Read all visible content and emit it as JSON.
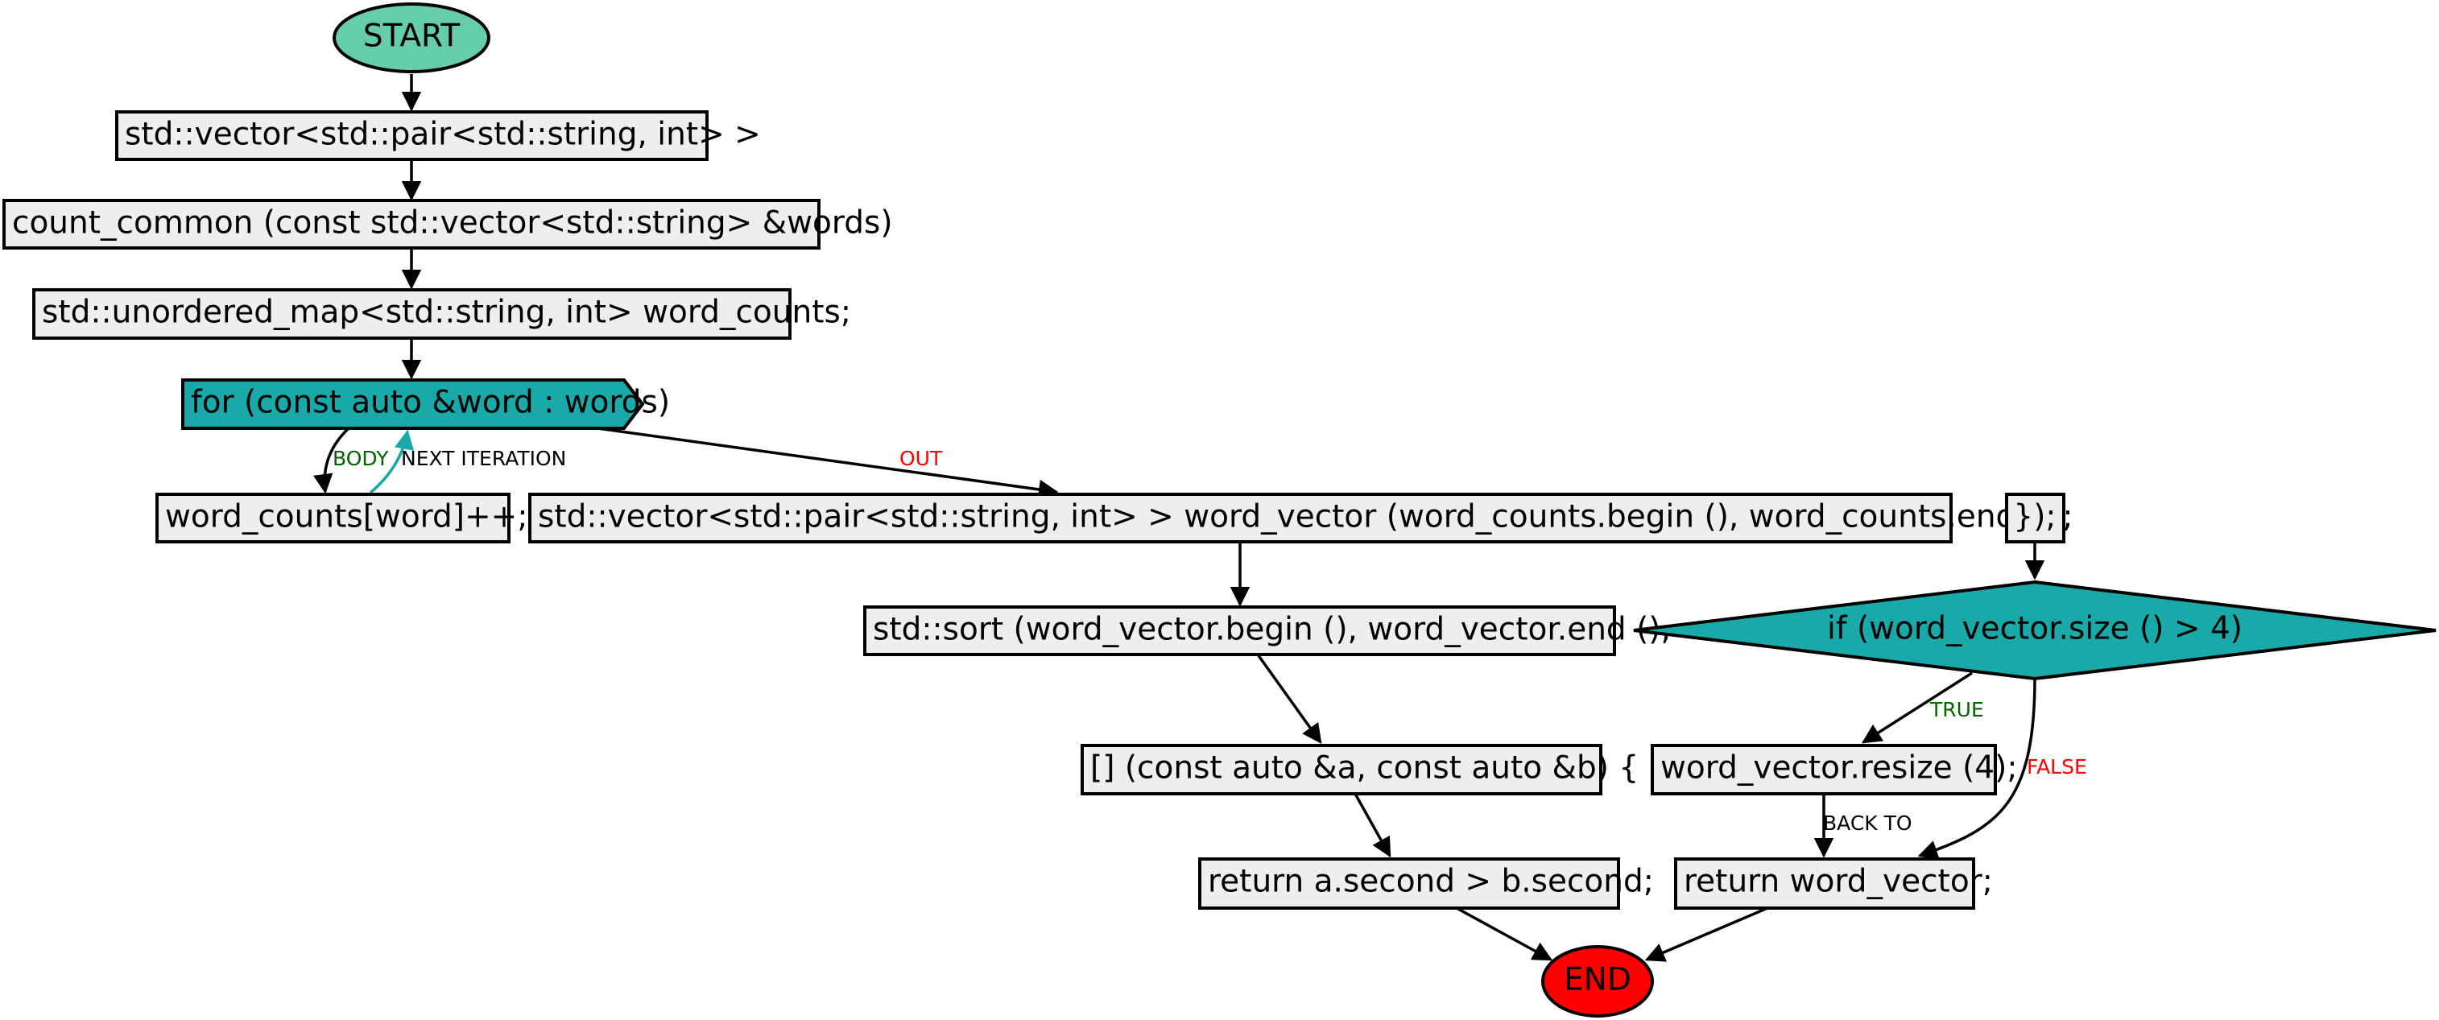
{
  "colors": {
    "start": "#66cdaa",
    "end": "#ff0000",
    "loop": "#1aa9a9",
    "decision": "#1aa9a9",
    "statement": "#eeeeee",
    "label_true": "#006400",
    "label_false": "#ff0000",
    "label_neutral": "#000000",
    "iteration_edge": "#1aa9a9"
  },
  "nodes": {
    "start": "START",
    "ret_type": "std::vector<std::pair<std::string, int> >",
    "signature": "count_common (const std::vector<std::string> &words)",
    "map_decl": "std::unordered_map<std::string, int> word_counts;",
    "for_loop": "for (const auto &word : words)",
    "increment": "word_counts[word]++;",
    "vector_decl": "std::vector<std::pair<std::string, int> > word_vector (word_counts.begin (), word_counts.end ());",
    "close_brace": "});",
    "sort_call": "std::sort (word_vector.begin (), word_vector.end (),",
    "if_size": "if (word_vector.size () > 4)",
    "lambda": "[] (const auto &a, const auto &b) {",
    "resize": "word_vector.resize (4);",
    "return_cmp": "return a.second > b.second;",
    "return_vec": "return word_vector;",
    "end": "END"
  },
  "edge_labels": {
    "body": "BODY",
    "next_iteration": "NEXT ITERATION",
    "out": "OUT",
    "true": "TRUE",
    "false": "FALSE",
    "back_to": "BACK TO"
  }
}
